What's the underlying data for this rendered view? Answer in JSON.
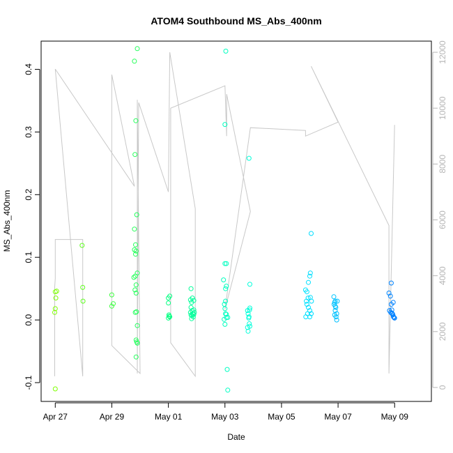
{
  "chart_data": {
    "type": "scatter",
    "title": "ATOM4 Southbound MS_Abs_400nm",
    "xlabel": "Date",
    "ylabel": "MS_Abs_400nm",
    "x_ticks": [
      "Apr 27",
      "Apr 29",
      "May 01",
      "May 03",
      "May 05",
      "May 07",
      "May 09"
    ],
    "y_ticks": [
      "-0.1",
      "0.0",
      "0.1",
      "0.2",
      "0.3",
      "0.4"
    ],
    "y2_ticks": [
      "0",
      "2000",
      "4000",
      "6000",
      "8000",
      "10000",
      "12000"
    ],
    "ylim": [
      -0.13,
      0.445
    ],
    "y2lim": [
      -500,
      12400
    ],
    "xlim": [
      -0.5,
      13.3
    ],
    "grid": false,
    "legend": "none",
    "point_color_scale": [
      "#7fff00",
      "#00ff7f",
      "#00ffff",
      "#007fff"
    ],
    "line_color": "#c8c8c8",
    "series": [
      {
        "type": "points",
        "points": [
          [
            0.0,
            0.045
          ],
          [
            0.02,
            0.035
          ],
          [
            0.0,
            0.018
          ],
          [
            -0.02,
            0.012
          ],
          [
            0.05,
            0.046
          ],
          [
            0.0,
            -0.11
          ],
          [
            0.95,
            0.119
          ],
          [
            0.97,
            0.052
          ],
          [
            0.98,
            0.03
          ],
          [
            2.0,
            0.04
          ],
          [
            2.0,
            0.022
          ],
          [
            2.05,
            0.026
          ],
          [
            2.8,
            0.413
          ],
          [
            2.9,
            0.433
          ],
          [
            2.85,
            0.318
          ],
          [
            2.82,
            0.264
          ],
          [
            2.88,
            0.168
          ],
          [
            2.8,
            0.145
          ],
          [
            2.84,
            0.12
          ],
          [
            2.8,
            0.112
          ],
          [
            2.86,
            0.11
          ],
          [
            2.84,
            0.105
          ],
          [
            2.9,
            0.075
          ],
          [
            2.78,
            0.068
          ],
          [
            2.83,
            0.07
          ],
          [
            2.86,
            0.056
          ],
          [
            2.82,
            0.048
          ],
          [
            2.86,
            0.043
          ],
          [
            2.83,
            0.012
          ],
          [
            2.87,
            0.013
          ],
          [
            2.9,
            -0.009
          ],
          [
            2.86,
            -0.032
          ],
          [
            2.88,
            -0.035
          ],
          [
            2.9,
            -0.037
          ],
          [
            2.86,
            -0.059
          ],
          [
            4.0,
            0.035
          ],
          [
            4.05,
            0.038
          ],
          [
            4.0,
            0.027
          ],
          [
            4.02,
            0.008
          ],
          [
            4.05,
            0.005
          ],
          [
            4.0,
            0.003
          ],
          [
            4.03,
            0.006
          ],
          [
            4.8,
            0.05
          ],
          [
            4.85,
            0.035
          ],
          [
            4.78,
            0.032
          ],
          [
            4.9,
            0.031
          ],
          [
            4.82,
            0.028
          ],
          [
            4.8,
            0.02
          ],
          [
            4.84,
            0.015
          ],
          [
            4.9,
            0.016
          ],
          [
            4.78,
            0.012
          ],
          [
            4.86,
            0.01
          ],
          [
            4.92,
            0.012
          ],
          [
            4.8,
            0.008
          ],
          [
            4.88,
            0.005
          ],
          [
            4.82,
            0.002
          ],
          [
            4.9,
            0.009
          ],
          [
            4.84,
            0.007
          ],
          [
            5.98,
            0.025
          ],
          [
            6.0,
            0.018
          ],
          [
            6.02,
            0.01
          ],
          [
            6.05,
            0.009
          ],
          [
            5.97,
            0.001
          ],
          [
            6.0,
            -0.007
          ],
          [
            6.05,
            0.004
          ],
          [
            6.1,
            0.004
          ],
          [
            5.95,
            0.064
          ],
          [
            6.0,
            0.09
          ],
          [
            6.05,
            0.09
          ],
          [
            6.02,
            0.05
          ],
          [
            6.05,
            0.054
          ],
          [
            6.0,
            0.312
          ],
          [
            6.03,
            0.429
          ],
          [
            6.08,
            -0.079
          ],
          [
            6.1,
            -0.112
          ],
          [
            6.02,
            0.03
          ],
          [
            6.85,
            0.258
          ],
          [
            6.88,
            0.057
          ],
          [
            6.8,
            0.015
          ],
          [
            6.82,
            0.01
          ],
          [
            6.85,
            0.005
          ],
          [
            6.88,
            -0.01
          ],
          [
            6.8,
            -0.012
          ],
          [
            6.82,
            -0.018
          ],
          [
            6.86,
            -0.006
          ],
          [
            6.84,
            0.003
          ],
          [
            6.87,
            0.016
          ],
          [
            6.88,
            0.019
          ],
          [
            8.85,
            0.048
          ],
          [
            8.9,
            0.045
          ],
          [
            8.95,
            0.06
          ],
          [
            9.0,
            0.07
          ],
          [
            9.02,
            0.075
          ],
          [
            9.05,
            0.138
          ],
          [
            8.88,
            0.03
          ],
          [
            8.9,
            0.025
          ],
          [
            8.95,
            0.02
          ],
          [
            9.0,
            0.015
          ],
          [
            8.92,
            0.01
          ],
          [
            9.05,
            0.01
          ],
          [
            8.86,
            0.005
          ],
          [
            9.0,
            0.005
          ],
          [
            8.94,
            0.035
          ],
          [
            9.02,
            0.036
          ],
          [
            9.06,
            0.03
          ],
          [
            9.85,
            0.037
          ],
          [
            9.9,
            0.03
          ],
          [
            9.88,
            0.028
          ],
          [
            9.86,
            0.025
          ],
          [
            9.92,
            0.02
          ],
          [
            9.9,
            0.015
          ],
          [
            9.95,
            0.01
          ],
          [
            9.88,
            0.008
          ],
          [
            9.93,
            0.005
          ],
          [
            9.95,
            0.0
          ],
          [
            9.97,
            0.03
          ],
          [
            9.9,
            0.022
          ],
          [
            11.8,
            0.043
          ],
          [
            11.85,
            0.038
          ],
          [
            11.88,
            0.025
          ],
          [
            11.95,
            0.028
          ],
          [
            11.82,
            0.015
          ],
          [
            11.86,
            0.012
          ],
          [
            11.9,
            0.011
          ],
          [
            11.92,
            0.01
          ],
          [
            11.94,
            0.008
          ],
          [
            11.96,
            0.005
          ],
          [
            11.98,
            0.004
          ],
          [
            12.0,
            0.003
          ],
          [
            11.88,
            0.059
          ],
          [
            11.9,
            0.016
          ]
        ]
      },
      {
        "type": "line",
        "axis": "right",
        "points": [
          [
            -0.02,
            400
          ],
          [
            -0.02,
            3600
          ],
          [
            0.0,
            3900
          ],
          [
            0.0,
            5300
          ],
          [
            0.97,
            5300
          ],
          [
            0.97,
            400
          ],
          [
            0.0,
            11400
          ],
          [
            2.8,
            7200
          ],
          [
            2.0,
            11200
          ],
          [
            2.0,
            1500
          ],
          [
            3.0,
            500
          ],
          [
            2.9,
            10300
          ],
          [
            2.9,
            500
          ],
          [
            2.95,
            10200
          ],
          [
            4.0,
            7000
          ],
          [
            4.05,
            12000
          ],
          [
            4.95,
            6400
          ],
          [
            4.95,
            400
          ],
          [
            4.08,
            1600
          ],
          [
            4.08,
            10000
          ],
          [
            6.0,
            10800
          ],
          [
            6.06,
            9000
          ],
          [
            6.06,
            10500
          ],
          [
            6.9,
            6300
          ],
          [
            6.0,
            2800
          ],
          [
            6.9,
            9300
          ],
          [
            8.85,
            9200
          ],
          [
            8.85,
            9000
          ],
          [
            10.0,
            9500
          ],
          [
            9.05,
            11500
          ],
          [
            11.8,
            5800
          ],
          [
            11.8,
            500
          ],
          [
            12.0,
            9400
          ]
        ]
      }
    ]
  }
}
